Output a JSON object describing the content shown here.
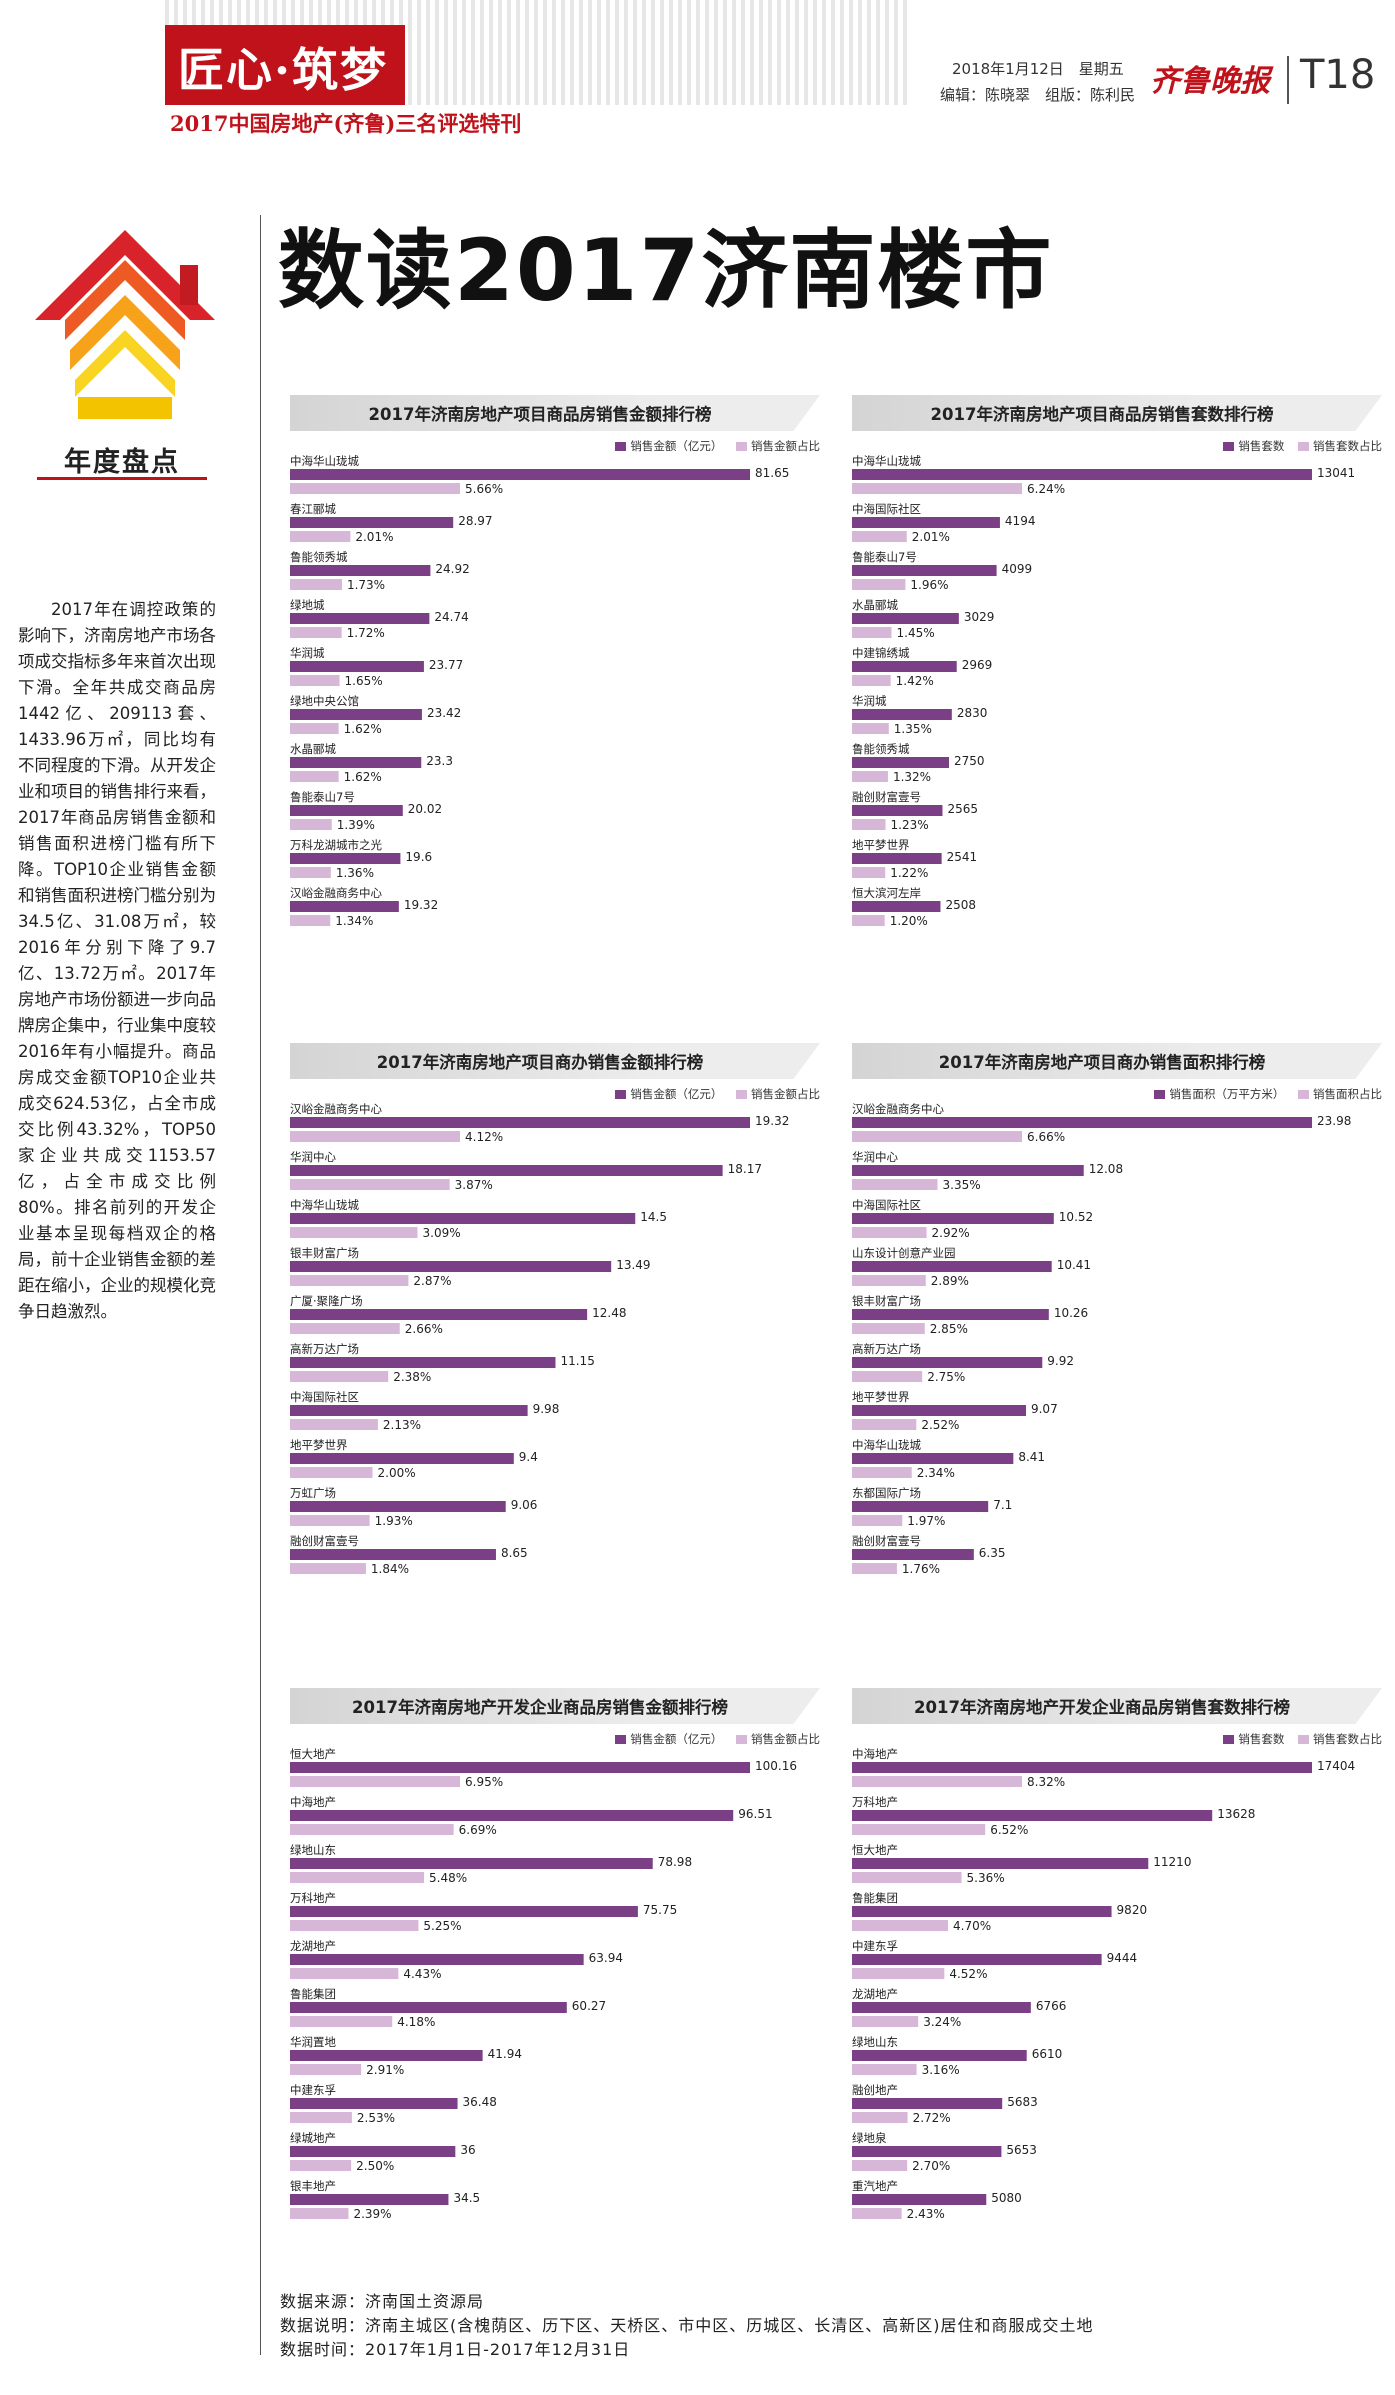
{
  "masthead": {
    "title": "匠心·筑梦",
    "subtitle": "2017中国房地产(齐鲁)三名评选特刊",
    "date": "2018年1月12日　星期五",
    "editors": "编辑：陈晓翠　组版：陈利民",
    "paper": "齐鲁晚报",
    "page": "T18"
  },
  "section_tag": "年度盘点",
  "headline": "数读2017济南楼市",
  "intro": "2017年在调控政策的影响下，济南房地产市场各项成交指标多年来首次出现下滑。全年共成交商品房1442亿、209113套、1433.96万㎡，同比均有不同程度的下滑。从开发企业和项目的销售排行来看，2017年商品房销售金额和销售面积进榜门槛有所下降。TOP10企业销售金额和销售面积进榜门槛分别为34.5亿、31.08万㎡，较2016年分别下降了9.7亿、13.72万㎡。2017年房地产市场份额进一步向品牌房企集中，行业集中度较2016年有小幅提升。商品房成交金额TOP10企业共成交624.53亿，占全市成交比例43.32%，TOP50家企业共成交1153.57亿，占全市成交比例80%。排名前列的开发企业基本呈现每档双企的格局，前十企业销售金额的差距在缩小，企业的规模化竞争日趋激烈。",
  "colors": {
    "primary": "#7b3f86",
    "secondary": "#d7b7d8",
    "brand_red": "#c0121b"
  },
  "footer": {
    "source": "数据来源：济南国土资源局",
    "note": "数据说明：济南主城区(含槐荫区、历下区、天桥区、市中区、历城区、长清区、高新区)居住和商服成交土地",
    "period": "数据时间：2017年1月1日-2017年12月31日"
  },
  "chart_data": [
    {
      "type": "bar",
      "title": "2017年济南房地产项目商品房销售金额排行榜",
      "categories": [
        "中海华山珑城",
        "春江郦城",
        "鲁能领秀城",
        "绿地城",
        "华润城",
        "绿地中央公馆",
        "水晶郦城",
        "鲁能泰山7号",
        "万科龙湖城市之光",
        "汉峪金融商务中心"
      ],
      "series": [
        {
          "name": "销售金额（亿元）",
          "values": [
            81.65,
            28.97,
            24.92,
            24.74,
            23.77,
            23.42,
            23.3,
            20.02,
            19.6,
            19.32
          ]
        },
        {
          "name": "销售金额占比",
          "values": [
            "5.66%",
            "2.01%",
            "1.73%",
            "1.72%",
            "1.65%",
            "1.62%",
            "1.62%",
            "1.39%",
            "1.36%",
            "1.34%"
          ]
        }
      ]
    },
    {
      "type": "bar",
      "title": "2017年济南房地产项目商品房销售套数排行榜",
      "categories": [
        "中海华山珑城",
        "中海国际社区",
        "鲁能泰山7号",
        "水晶郦城",
        "中建锦绣城",
        "华润城",
        "鲁能领秀城",
        "融创财富壹号",
        "地平梦世界",
        "恒大滨河左岸"
      ],
      "series": [
        {
          "name": "销售套数",
          "values": [
            13041,
            4194,
            4099,
            3029,
            2969,
            2830,
            2750,
            2565,
            2541,
            2508
          ]
        },
        {
          "name": "销售套数占比",
          "values": [
            "6.24%",
            "2.01%",
            "1.96%",
            "1.45%",
            "1.42%",
            "1.35%",
            "1.32%",
            "1.23%",
            "1.22%",
            "1.20%"
          ]
        }
      ]
    },
    {
      "type": "bar",
      "title": "2017年济南房地产项目商办销售金额排行榜",
      "categories": [
        "汉峪金融商务中心",
        "华润中心",
        "中海华山珑城",
        "银丰财富广场",
        "广厦·聚隆广场",
        "高新万达广场",
        "中海国际社区",
        "地平梦世界",
        "万虹广场",
        "融创财富壹号"
      ],
      "series": [
        {
          "name": "销售金额（亿元）",
          "values": [
            19.32,
            18.17,
            14.5,
            13.49,
            12.48,
            11.15,
            9.98,
            9.4,
            9.06,
            8.65
          ]
        },
        {
          "name": "销售金额占比",
          "values": [
            "4.12%",
            "3.87%",
            "3.09%",
            "2.87%",
            "2.66%",
            "2.38%",
            "2.13%",
            "2.00%",
            "1.93%",
            "1.84%"
          ]
        }
      ]
    },
    {
      "type": "bar",
      "title": "2017年济南房地产项目商办销售面积排行榜",
      "categories": [
        "汉峪金融商务中心",
        "华润中心",
        "中海国际社区",
        "山东设计创意产业园",
        "银丰财富广场",
        "高新万达广场",
        "地平梦世界",
        "中海华山珑城",
        "东都国际广场",
        "融创财富壹号"
      ],
      "series": [
        {
          "name": "销售面积（万平方米）",
          "values": [
            23.98,
            12.08,
            10.52,
            10.41,
            10.26,
            9.92,
            9.07,
            8.41,
            7.1,
            6.35
          ]
        },
        {
          "name": "销售面积占比",
          "values": [
            "6.66%",
            "3.35%",
            "2.92%",
            "2.89%",
            "2.85%",
            "2.75%",
            "2.52%",
            "2.34%",
            "1.97%",
            "1.76%"
          ]
        }
      ]
    },
    {
      "type": "bar",
      "title": "2017年济南房地产开发企业商品房销售金额排行榜",
      "categories": [
        "恒大地产",
        "中海地产",
        "绿地山东",
        "万科地产",
        "龙湖地产",
        "鲁能集团",
        "华润置地",
        "中建东孚",
        "绿城地产",
        "银丰地产"
      ],
      "series": [
        {
          "name": "销售金额（亿元）",
          "values": [
            100.16,
            96.51,
            78.98,
            75.75,
            63.94,
            60.27,
            41.94,
            36.48,
            36,
            34.5
          ]
        },
        {
          "name": "销售金额占比",
          "values": [
            "6.95%",
            "6.69%",
            "5.48%",
            "5.25%",
            "4.43%",
            "4.18%",
            "2.91%",
            "2.53%",
            "2.50%",
            "2.39%"
          ]
        }
      ]
    },
    {
      "type": "bar",
      "title": "2017年济南房地产开发企业商品房销售套数排行榜",
      "categories": [
        "中海地产",
        "万科地产",
        "恒大地产",
        "鲁能集团",
        "中建东孚",
        "龙湖地产",
        "绿地山东",
        "融创地产",
        "绿地泉",
        "重汽地产"
      ],
      "series": [
        {
          "name": "销售套数",
          "values": [
            17404,
            13628,
            11210,
            9820,
            9444,
            6766,
            6610,
            5683,
            5653,
            5080
          ]
        },
        {
          "name": "销售套数占比",
          "values": [
            "8.32%",
            "6.52%",
            "5.36%",
            "4.70%",
            "4.52%",
            "3.24%",
            "3.16%",
            "2.72%",
            "2.70%",
            "2.43%"
          ]
        }
      ]
    }
  ]
}
